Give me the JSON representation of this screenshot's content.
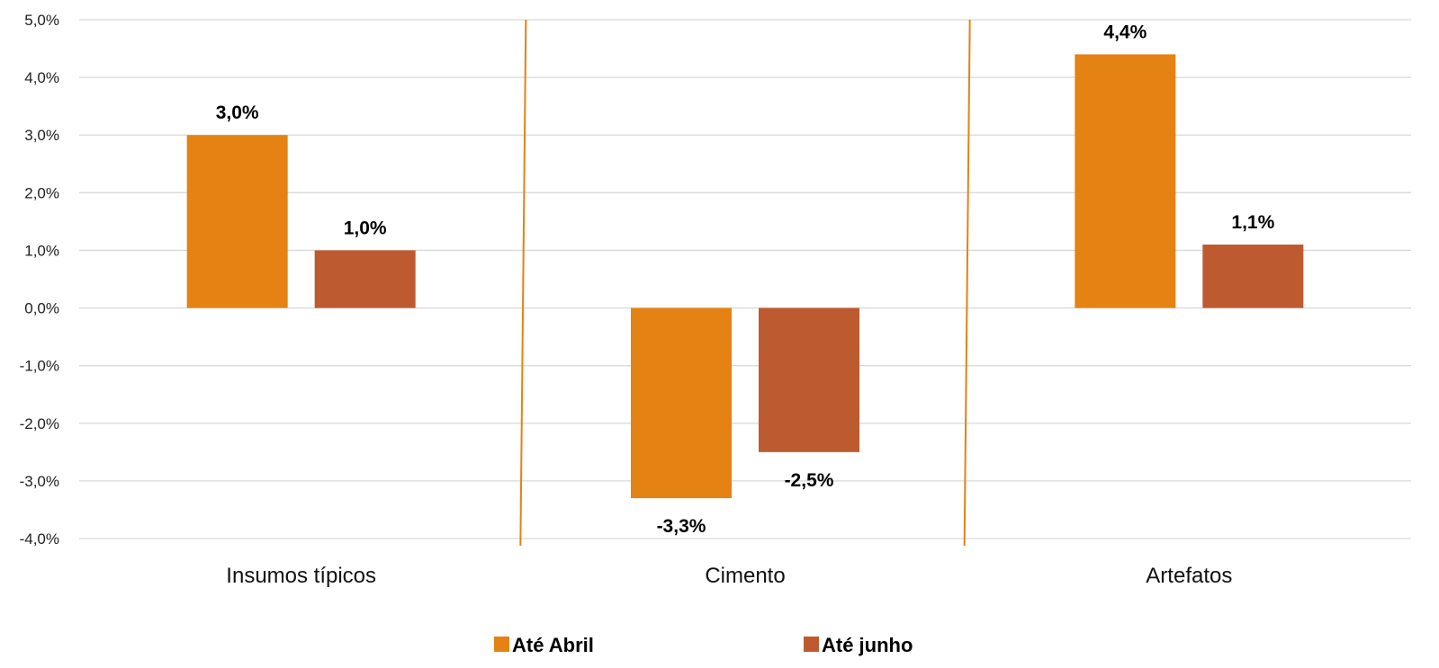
{
  "chart_data": {
    "type": "bar",
    "categories": [
      "Insumos típicos",
      "Cimento",
      "Artefatos"
    ],
    "series": [
      {
        "name": "Até Abril",
        "values": [
          3.0,
          -3.3,
          4.4
        ],
        "labels": [
          "3,0%",
          "-3,3%",
          "4,4%"
        ],
        "color": "#E48213"
      },
      {
        "name": "Até junho",
        "values": [
          1.0,
          -2.5,
          1.1
        ],
        "labels": [
          "1,0%",
          "-2,5%",
          "1,1%"
        ],
        "color": "#BD5A2F"
      }
    ],
    "ylim": [
      -4.0,
      5.0
    ],
    "yticks": [
      5.0,
      4.0,
      3.0,
      2.0,
      1.0,
      0.0,
      -1.0,
      -2.0,
      -3.0,
      -4.0
    ],
    "ytick_labels": [
      "5,0%",
      "4,0%",
      "3,0%",
      "2,0%",
      "1,0%",
      "0,0%",
      "-1,0%",
      "-2,0%",
      "-3,0%",
      "-4,0%"
    ],
    "grid": true,
    "legend_position": "bottom",
    "separator_color": "#E48213",
    "title": "",
    "xlabel": "",
    "ylabel": ""
  }
}
